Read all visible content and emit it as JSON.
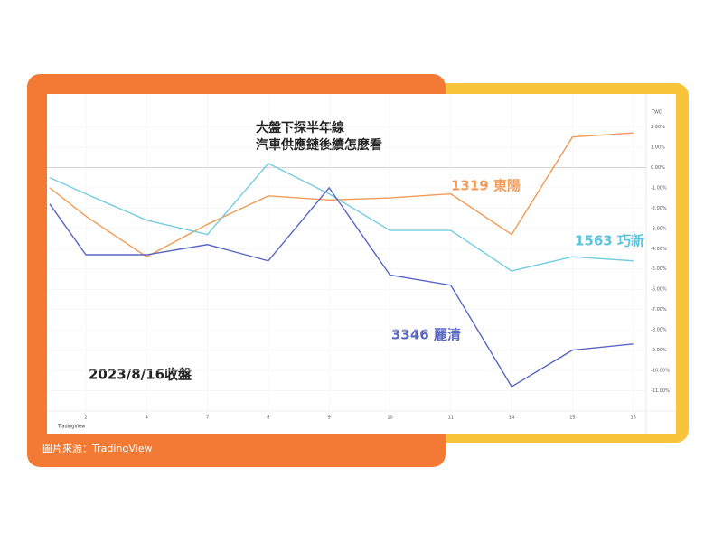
{
  "chart_data": {
    "type": "line",
    "title": [
      "大盤下探半年線",
      "汽車供應鏈後續怎麼看"
    ],
    "annotations": [
      "1319 東陽",
      "1563 巧新",
      "3346 麗清",
      "2023/8/16收盤"
    ],
    "y_axis_label": "TWD",
    "source": "圖片來源：TradingView",
    "brand": "TradingView",
    "categories": [
      null,
      "2",
      "4",
      "7",
      "8",
      "9",
      "10",
      "11",
      "14",
      "15",
      "16"
    ],
    "series": [
      {
        "name": "1319",
        "color": "#f39a57",
        "values": [
          -1.0,
          -2.4,
          -4.4,
          -2.8,
          -1.4,
          -1.6,
          -1.5,
          -1.3,
          -3.3,
          1.5,
          1.7
        ]
      },
      {
        "name": "1563",
        "color": "#74cde0",
        "values": [
          -0.5,
          -1.3,
          -2.6,
          -3.3,
          0.2,
          -1.3,
          -3.1,
          -3.1,
          -5.1,
          -4.4,
          -4.6
        ]
      },
      {
        "name": "3346",
        "color": "#5866c4",
        "values": [
          -1.8,
          -4.3,
          -4.3,
          -3.8,
          -4.6,
          -1.0,
          -5.3,
          -5.8,
          -10.8,
          -9.0,
          -8.7
        ]
      }
    ],
    "ylim": [
      -12,
      3
    ],
    "yticks": [
      {
        "value": 2,
        "label": "2.00%"
      },
      {
        "value": 1,
        "label": "1.00%"
      },
      {
        "value": 0,
        "label": "0.00%"
      },
      {
        "value": -1,
        "label": "-1.00%"
      },
      {
        "value": -2,
        "label": "-2.00%"
      },
      {
        "value": -3,
        "label": "-3.00%"
      },
      {
        "value": -4,
        "label": "-4.00%"
      },
      {
        "value": -5,
        "label": "-5.00%"
      },
      {
        "value": -6,
        "label": "-6.00%"
      },
      {
        "value": -7,
        "label": "-7.00%"
      },
      {
        "value": -8,
        "label": "-8.00%"
      },
      {
        "value": -9,
        "label": "-9.00%"
      },
      {
        "value": -10,
        "label": "-10.00%"
      },
      {
        "value": -11,
        "label": "-11.00%"
      }
    ],
    "grid": true
  }
}
